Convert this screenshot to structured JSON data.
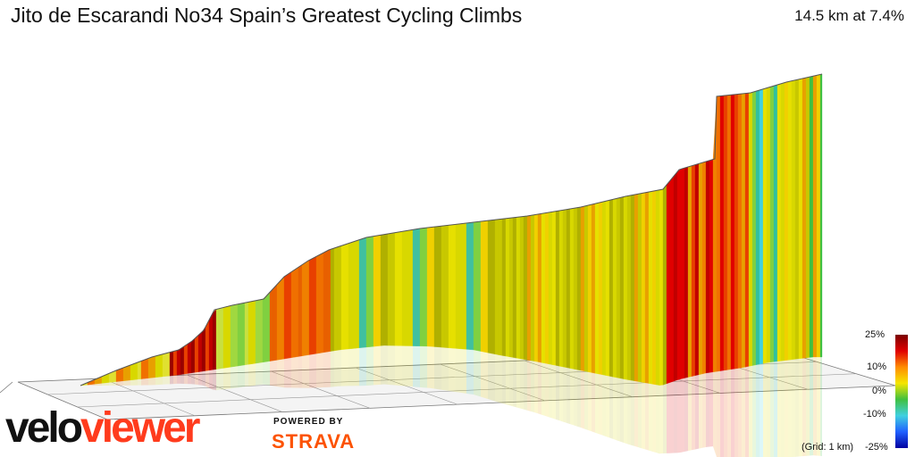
{
  "title": "Jito de Escarandi No34 Spain’s Greatest Cycling Climbs",
  "stat": "14.5 km at 7.4%",
  "legend": {
    "labels": [
      "25%",
      "10%",
      "0%",
      "-10%",
      "-25%"
    ],
    "gradient_colors": [
      "#7a0000",
      "#e00000",
      "#ff8c00",
      "#f5e600",
      "#40c040",
      "#40d0e0",
      "#2060ff",
      "#0000a0"
    ]
  },
  "grid_note": "(Grid: 1 km)",
  "logo": {
    "part1": "velo",
    "part2": "viewer",
    "brand_color": "#ff3b1d"
  },
  "powered_by": "POWERED BY",
  "strava": "STRAVA",
  "colors": {
    "strava": "#fc5200"
  },
  "chart_data": {
    "type": "area",
    "title": "Jito de Escarandi No34 Spain’s Greatest Cycling Climbs",
    "distance_km": 14.5,
    "average_gradient_pct": 7.4,
    "color_scale_pct": [
      25,
      10,
      0,
      -10,
      -25
    ],
    "grid": true
  }
}
